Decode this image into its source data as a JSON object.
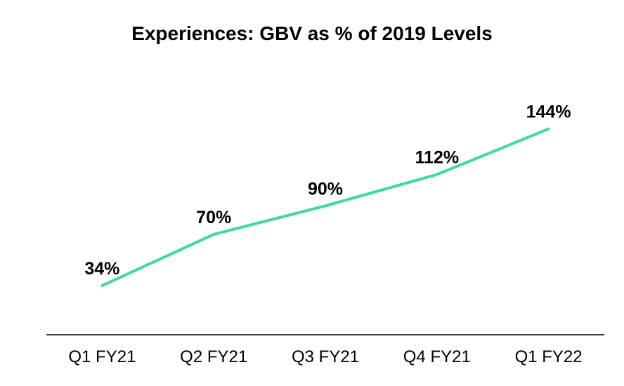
{
  "chart_data": {
    "type": "line",
    "title": "Experiences: GBV as % of 2019 Levels",
    "xlabel": "",
    "ylabel": "",
    "categories": [
      "Q1 FY21",
      "Q2 FY21",
      "Q3 FY21",
      "Q4 FY21",
      "Q1 FY22"
    ],
    "series": [
      {
        "values": [
          34,
          70,
          90,
          112,
          144
        ],
        "labels": [
          "34%",
          "70%",
          "90%",
          "112%",
          "144%"
        ],
        "color": "#3ddc97"
      }
    ],
    "ylim": [
      -0.5,
      250
    ],
    "grid": false,
    "legend": "none",
    "axis_color": "#000000"
  }
}
